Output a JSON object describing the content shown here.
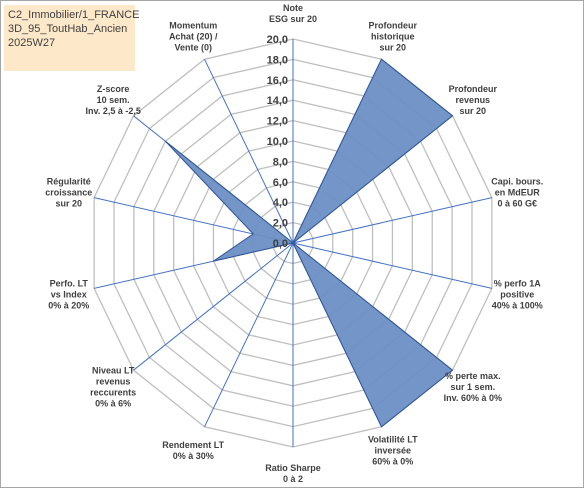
{
  "header": {
    "lines": [
      "C2_Immobilier/1_FRANCE",
      "3D_95_ToutHab_Ancien",
      "2025W27"
    ]
  },
  "chart_data": {
    "type": "radar",
    "categories": [
      [
        "Note",
        "ESG sur 20"
      ],
      [
        "Profondeur",
        "historique",
        "sur 20"
      ],
      [
        "Profondeur",
        "revenus",
        "sur 20"
      ],
      [
        "Capi. bours.",
        "en MdEUR",
        "0 à 60 G€"
      ],
      [
        "% perfo 1A",
        "positive",
        "40% à 100%"
      ],
      [
        "% perte max.",
        "sur 1 sem.",
        "Inv. 60% à 0%"
      ],
      [
        "Volatilité LT",
        "inversée",
        "60% à 0%"
      ],
      [
        "Ratio Sharpe",
        "0 à 2"
      ],
      [
        "Rendement LT",
        "0% à 30%"
      ],
      [
        "Niveau LT",
        "revenus",
        "reccurents",
        "0% à 6%"
      ],
      [
        "Perfo. LT",
        "vs Index",
        "0% à 20%"
      ],
      [
        "Régularité",
        "croissance",
        "sur 20"
      ],
      [
        "Z-score",
        "10 sem.",
        "Inv. 2,5 à -2,5"
      ],
      [
        "Momentum",
        "Achat (20) /",
        "Vente (0)"
      ]
    ],
    "values": [
      0,
      20,
      20,
      0,
      0,
      20,
      20,
      0,
      0,
      0,
      8,
      4,
      16,
      0
    ],
    "ylim": [
      0,
      20
    ],
    "ticks": [
      "0,0",
      "2,0",
      "4,0",
      "6,0",
      "8,0",
      "10,0",
      "12,0",
      "14,0",
      "16,0",
      "18,0",
      "20,0"
    ],
    "grid": true,
    "colors": {
      "fill": "#6b8fc4",
      "stroke": "#2f5597",
      "grid": "#bfbfbf",
      "axis": "#4472c4"
    }
  }
}
